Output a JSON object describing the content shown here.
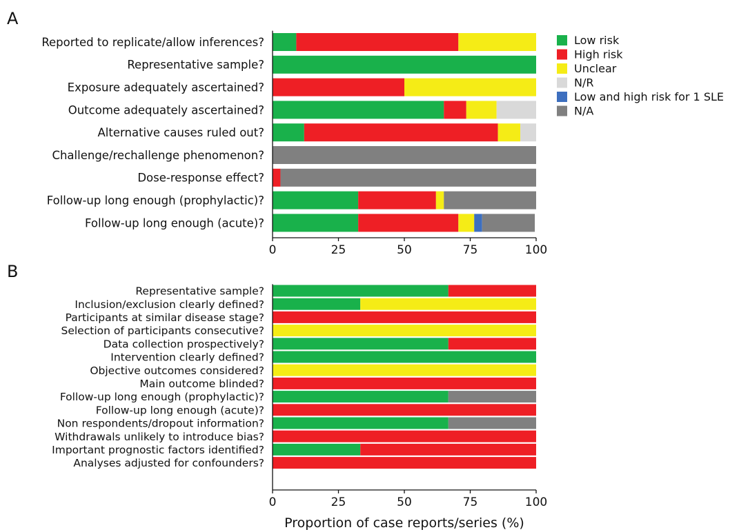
{
  "colors": {
    "low": "#19b14b",
    "high": "#ee1f25",
    "unclear": "#f5ec16",
    "nr": "#d9d9d9",
    "low_high": "#3d6fbf",
    "na": "#808080"
  },
  "chart_data": [
    {
      "type": "bar",
      "orientation": "horizontal",
      "stacked": true,
      "panel_label": "A",
      "xlim": [
        0,
        100
      ],
      "x_ticks": [
        "0",
        "25",
        "50",
        "75",
        "100"
      ],
      "xlabel": "",
      "legend_position": "top-right",
      "legend": [
        {
          "key": "low",
          "label": "Low risk"
        },
        {
          "key": "high",
          "label": "High risk"
        },
        {
          "key": "unclear",
          "label": "Unclear"
        },
        {
          "key": "nr",
          "label": "N/R"
        },
        {
          "key": "low_high",
          "label": "Low and high risk for 1 SLE"
        },
        {
          "key": "na",
          "label": "N/A"
        }
      ],
      "categories": [
        "Reported to replicate/allow inferences?",
        "Representative sample?",
        "Exposure adequately ascertained?",
        "Outcome adequately ascertained?",
        "Alternative causes ruled out?",
        "Challenge/rechallenge phenomenon?",
        "Dose-response effect?",
        "Follow-up long enough (prophylactic)?",
        "Follow-up long enough (acute)?"
      ],
      "series": [
        {
          "key": "low",
          "values": [
            9,
            100,
            0,
            65,
            12,
            0,
            0,
            32.5,
            32.5
          ]
        },
        {
          "key": "high",
          "values": [
            61.5,
            0,
            50,
            8.5,
            73.5,
            0,
            3,
            29.5,
            38
          ]
        },
        {
          "key": "unclear",
          "values": [
            29.5,
            0,
            50,
            11.5,
            8.5,
            0,
            0,
            3,
            6
          ]
        },
        {
          "key": "nr",
          "values": [
            0,
            0,
            0,
            15,
            6,
            0,
            0,
            0,
            0
          ]
        },
        {
          "key": "low_high",
          "values": [
            0,
            0,
            0,
            0,
            0,
            0,
            0,
            0,
            3
          ]
        },
        {
          "key": "na",
          "values": [
            0,
            0,
            0,
            0,
            0,
            100,
            97,
            35,
            20
          ]
        }
      ]
    },
    {
      "type": "bar",
      "orientation": "horizontal",
      "stacked": true,
      "panel_label": "B",
      "xlim": [
        0,
        100
      ],
      "x_ticks": [
        "0",
        "25",
        "50",
        "75",
        "100"
      ],
      "xlabel": "Proportion of case reports/series (%)",
      "categories": [
        "Representative sample?",
        "Inclusion/exclusion clearly defined?",
        "Participants at similar disease stage?",
        "Selection of participants consecutive?",
        "Data collection prospectively?",
        "Intervention clearly defined?",
        "Objective outcomes considered?",
        "Main outcome blinded?",
        "Follow-up long enough (prophylactic)?",
        "Follow-up long enough (acute)?",
        "Non respondents/dropout information?",
        "Withdrawals unlikely to introduce bias?",
        "Important prognostic factors identified?",
        "Analyses adjusted for confounders?"
      ],
      "series": [
        {
          "key": "low",
          "values": [
            66.7,
            33.3,
            0,
            0,
            66.7,
            100,
            0,
            0,
            66.7,
            0,
            66.7,
            0,
            33.3,
            0
          ]
        },
        {
          "key": "high",
          "values": [
            33.3,
            0,
            100,
            0,
            33.3,
            0,
            0,
            100,
            0,
            100,
            0,
            100,
            66.7,
            100
          ]
        },
        {
          "key": "unclear",
          "values": [
            0,
            66.7,
            0,
            100,
            0,
            0,
            100,
            0,
            0,
            0,
            0,
            0,
            0,
            0
          ]
        },
        {
          "key": "na",
          "values": [
            0,
            0,
            0,
            0,
            0,
            0,
            0,
            0,
            33.3,
            0,
            33.3,
            0,
            0,
            0
          ]
        }
      ]
    }
  ]
}
